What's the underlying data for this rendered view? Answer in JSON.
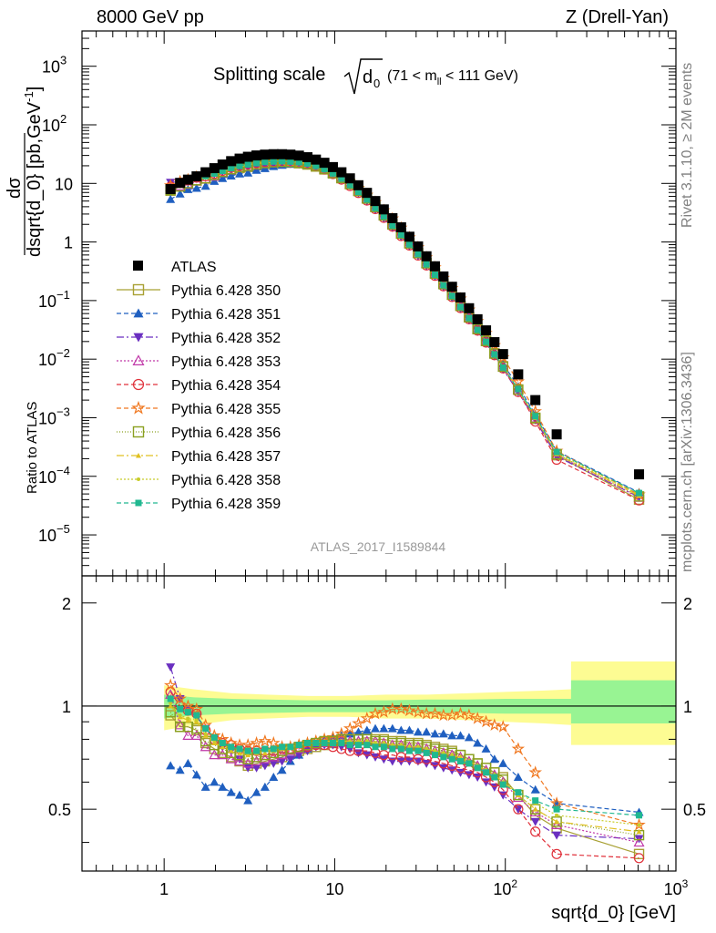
{
  "header": {
    "left": "8000 GeV pp",
    "right": "Z (Drell-Yan)"
  },
  "side_labels": {
    "rivet": "Rivet 3.1.10, ≥ 2M events",
    "mcplots": "mcplots.cern.ch [arXiv:1306.3436]"
  },
  "chart_data": {
    "type": "scatter",
    "title_main": "Splitting scale",
    "title_sqrt": "d",
    "title_sqrt_sub": "0",
    "title_range": "(71 < m",
    "title_range_sub": "ll",
    "title_range_end": " < 111 GeV)",
    "watermark": "ATLAS_2017_I1589844",
    "xlabel": "sqrt{d_0} [GeV]",
    "ylabel_top_num": "dσ",
    "ylabel_top_den": "dsqrt{d_0} [pb,GeV",
    "ylabel_top_den_sup": "-1",
    "ylabel_top_den_end": "]",
    "ylabel_ratio": "Ratio to ATLAS",
    "x_scale": "log",
    "y_scale": "log",
    "xlim": [
      0.33,
      1000
    ],
    "ylim": [
      2e-06,
      4000
    ],
    "ratio_ylim": [
      0.33,
      2.4
    ],
    "x_ticks": [
      "1",
      "10",
      "10²",
      "10³"
    ],
    "y_ticks": [
      "10⁻⁵",
      "10⁻⁴",
      "10⁻³",
      "10⁻²",
      "10⁻¹",
      "1",
      "10",
      "10²",
      "10³"
    ],
    "ratio_ticks": [
      "0.5",
      "1",
      "2"
    ],
    "x": [
      1.09,
      1.24,
      1.38,
      1.55,
      1.75,
      1.97,
      2.2,
      2.47,
      2.77,
      3.1,
      3.48,
      3.9,
      4.38,
      4.91,
      5.5,
      6.17,
      6.92,
      7.76,
      8.7,
      9.76,
      10.95,
      12.28,
      13.77,
      15.45,
      17.3,
      19.4,
      21.8,
      24.5,
      27.4,
      30.8,
      34.5,
      38.7,
      43.4,
      48.7,
      54.6,
      61.3,
      68.7,
      77.1,
      86.4,
      97,
      108.8,
      122,
      137.1,
      153.7,
      172.4,
      193.4,
      216.9,
      243.3,
      608
    ],
    "data_x": [
      1.09,
      1.24,
      1.38,
      1.55,
      1.75,
      1.97,
      2.2,
      2.47,
      2.77,
      3.1,
      3.48,
      3.9,
      4.38,
      4.91,
      5.5,
      6.17,
      6.92,
      7.76,
      8.7,
      9.76,
      10.95,
      12.28,
      13.77,
      15.45,
      17.3,
      19.4,
      21.8,
      24.5,
      27.4,
      30.8,
      34.5,
      38.7,
      43.4,
      48.7,
      54.6,
      61.3,
      68.7,
      77.1,
      86.4,
      97,
      108.8,
      122,
      137.1,
      153.7,
      172.4,
      193.4,
      216.9,
      243.3,
      608
    ],
    "atlas": {
      "name": "ATLAS",
      "x": [
        1.09,
        1.24,
        1.38,
        1.55,
        1.75,
        1.97,
        2.2,
        2.47,
        2.77,
        3.1,
        3.48,
        3.9,
        4.38,
        4.91,
        5.5,
        6.17,
        6.92,
        7.76,
        8.7,
        9.76,
        10.95,
        12.28,
        13.77,
        15.45,
        17.3,
        19.4,
        21.8,
        24.5,
        27.4,
        30.8,
        34.5,
        38.7,
        43.4,
        48.7,
        54.6,
        61.3,
        68.7,
        77.1,
        86.4,
        97,
        108.8,
        122,
        137.1,
        153.7,
        172.4,
        193.4,
        216.9,
        243.3,
        608
      ],
      "values": [
        8.0,
        10.2,
        11.6,
        13.2,
        15.5,
        18.2,
        21.0,
        24.0,
        26.5,
        28.5,
        30.0,
        31.0,
        31.5,
        31.5,
        31.0,
        29.8,
        28.0,
        25.5,
        22.5,
        19.0,
        15.5,
        12.2,
        9.3,
        6.9,
        5.0,
        3.6,
        2.55,
        1.78,
        1.23,
        0.84,
        0.57,
        0.385,
        0.258,
        0.172,
        0.113,
        0.074,
        0.048,
        0.031,
        0.0195,
        0.0122,
        0.0075,
        0.0046,
        0.0028,
        0.0017,
        0.00104,
        0.00063,
        0.00038,
        0.00023,
        0.00011
      ]
    },
    "atlas_points_x": [
      1.09,
      1.24,
      1.38,
      1.55,
      1.75,
      1.97,
      2.2,
      2.47,
      2.77,
      3.1,
      3.48,
      3.9,
      4.38,
      4.91,
      5.5,
      6.17,
      6.92,
      7.76,
      8.7,
      9.76,
      10.95,
      12.28,
      13.77,
      15.45,
      17.3,
      19.4,
      21.8,
      24.5,
      27.4,
      30.8,
      34.5,
      38.7,
      43.4,
      48.7,
      54.6,
      61.3,
      68.7,
      77.1,
      86.4,
      97,
      119,
      150,
      200,
      608
    ],
    "atlas_points_y": [
      8.0,
      10.2,
      11.6,
      13.2,
      15.5,
      18.2,
      21.0,
      24.0,
      26.5,
      28.5,
      30.0,
      31.0,
      31.5,
      31.5,
      31.0,
      29.8,
      28.0,
      25.5,
      22.5,
      19.0,
      15.5,
      12.2,
      9.3,
      6.9,
      5.0,
      3.6,
      2.55,
      1.78,
      1.23,
      0.84,
      0.57,
      0.385,
      0.258,
      0.172,
      0.113,
      0.074,
      0.048,
      0.031,
      0.0195,
      0.0122,
      0.0055,
      0.002,
      0.00052,
      0.000108
    ],
    "band_x": [
      1.0,
      1.5,
      2.5,
      4,
      7,
      12,
      20,
      35,
      60,
      100,
      170,
      243,
      243,
      1000
    ],
    "band_yellow_lo": [
      0.85,
      0.88,
      0.91,
      0.92,
      0.93,
      0.93,
      0.92,
      0.92,
      0.91,
      0.9,
      0.89,
      0.88,
      0.77,
      0.77
    ],
    "band_yellow_hi": [
      1.15,
      1.12,
      1.09,
      1.08,
      1.07,
      1.07,
      1.08,
      1.08,
      1.09,
      1.1,
      1.11,
      1.12,
      1.35,
      1.35
    ],
    "band_green_lo": [
      0.92,
      0.94,
      0.95,
      0.955,
      0.96,
      0.96,
      0.96,
      0.955,
      0.955,
      0.95,
      0.95,
      0.95,
      0.89,
      0.89
    ],
    "band_green_hi": [
      1.08,
      1.06,
      1.05,
      1.045,
      1.04,
      1.04,
      1.04,
      1.045,
      1.045,
      1.05,
      1.05,
      1.05,
      1.19,
      1.19
    ],
    "ratio_x": [
      1.09,
      1.24,
      1.38,
      1.55,
      1.75,
      1.97,
      2.2,
      2.47,
      2.77,
      3.1,
      3.48,
      3.9,
      4.38,
      4.91,
      5.5,
      6.17,
      6.92,
      7.76,
      8.7,
      9.76,
      10.95,
      12.28,
      13.77,
      15.45,
      17.3,
      19.4,
      21.8,
      24.5,
      27.4,
      30.8,
      34.5,
      38.7,
      43.4,
      48.7,
      54.6,
      61.3,
      68.7,
      77.1,
      86.4,
      97,
      119,
      150,
      200,
      608
    ],
    "series": [
      {
        "name": "Pythia 6.428 350",
        "color": "#a8a033",
        "marker": "square-open",
        "dash": "solid",
        "ratio": [
          0.94,
          0.87,
          0.87,
          0.85,
          0.78,
          0.75,
          0.73,
          0.71,
          0.69,
          0.67,
          0.68,
          0.69,
          0.7,
          0.71,
          0.73,
          0.74,
          0.75,
          0.76,
          0.77,
          0.78,
          0.79,
          0.8,
          0.8,
          0.81,
          0.8,
          0.8,
          0.79,
          0.79,
          0.78,
          0.78,
          0.77,
          0.76,
          0.75,
          0.74,
          0.72,
          0.7,
          0.68,
          0.66,
          0.64,
          0.62,
          0.55,
          0.48,
          0.44,
          0.37
        ]
      },
      {
        "name": "Pythia 6.428 351",
        "color": "#1f5fc0",
        "marker": "triangle-up-filled",
        "dash": "5,3",
        "ratio": [
          0.67,
          0.65,
          0.68,
          0.63,
          0.58,
          0.6,
          0.58,
          0.56,
          0.55,
          0.53,
          0.56,
          0.58,
          0.62,
          0.65,
          0.69,
          0.72,
          0.75,
          0.77,
          0.8,
          0.81,
          0.82,
          0.83,
          0.84,
          0.85,
          0.86,
          0.86,
          0.86,
          0.85,
          0.85,
          0.84,
          0.84,
          0.83,
          0.83,
          0.82,
          0.82,
          0.81,
          0.78,
          0.75,
          0.7,
          0.68,
          0.62,
          0.57,
          0.52,
          0.49
        ]
      },
      {
        "name": "Pythia 6.428 352",
        "color": "#6a2fc0",
        "marker": "triangle-down-filled",
        "dash": "8,3,2,3",
        "ratio": [
          1.3,
          1.05,
          0.97,
          0.93,
          0.86,
          0.8,
          0.76,
          0.74,
          0.7,
          0.66,
          0.66,
          0.67,
          0.68,
          0.69,
          0.7,
          0.72,
          0.74,
          0.76,
          0.77,
          0.77,
          0.76,
          0.75,
          0.73,
          0.72,
          0.71,
          0.7,
          0.69,
          0.69,
          0.69,
          0.69,
          0.68,
          0.67,
          0.66,
          0.65,
          0.64,
          0.63,
          0.62,
          0.6,
          0.58,
          0.55,
          0.5,
          0.46,
          0.42,
          0.41
        ]
      },
      {
        "name": "Pythia 6.428 353",
        "color": "#c038a8",
        "marker": "triangle-up-open",
        "dash": "2,2",
        "ratio": [
          1.08,
          0.88,
          0.82,
          0.82,
          0.76,
          0.72,
          0.72,
          0.7,
          0.69,
          0.68,
          0.69,
          0.7,
          0.71,
          0.72,
          0.74,
          0.75,
          0.76,
          0.77,
          0.78,
          0.78,
          0.79,
          0.79,
          0.79,
          0.79,
          0.79,
          0.78,
          0.77,
          0.77,
          0.76,
          0.76,
          0.75,
          0.74,
          0.73,
          0.72,
          0.71,
          0.69,
          0.67,
          0.65,
          0.63,
          0.6,
          0.54,
          0.49,
          0.45,
          0.4
        ]
      },
      {
        "name": "Pythia 6.428 354",
        "color": "#e0303a",
        "marker": "circle-open",
        "dash": "5,3",
        "ratio": [
          1.1,
          1.0,
          0.97,
          0.95,
          0.85,
          0.8,
          0.78,
          0.77,
          0.75,
          0.74,
          0.74,
          0.74,
          0.74,
          0.75,
          0.75,
          0.76,
          0.76,
          0.77,
          0.77,
          0.76,
          0.75,
          0.74,
          0.74,
          0.74,
          0.73,
          0.72,
          0.72,
          0.71,
          0.71,
          0.7,
          0.7,
          0.69,
          0.68,
          0.67,
          0.66,
          0.65,
          0.64,
          0.62,
          0.6,
          0.57,
          0.5,
          0.43,
          0.37,
          0.36
        ]
      },
      {
        "name": "Pythia 6.428 355",
        "color": "#f07820",
        "marker": "star-open",
        "dash": "5,3",
        "ratio": [
          1.15,
          1.05,
          1.0,
          0.98,
          0.88,
          0.82,
          0.8,
          0.78,
          0.77,
          0.77,
          0.78,
          0.79,
          0.78,
          0.76,
          0.76,
          0.77,
          0.78,
          0.79,
          0.8,
          0.81,
          0.83,
          0.86,
          0.89,
          0.92,
          0.95,
          0.96,
          0.98,
          0.98,
          0.97,
          0.96,
          0.95,
          0.95,
          0.94,
          0.94,
          0.95,
          0.94,
          0.92,
          0.9,
          0.88,
          0.87,
          0.75,
          0.64,
          0.52,
          0.45
        ]
      },
      {
        "name": "Pythia 6.428 356",
        "color": "#8aa020",
        "marker": "square-open",
        "dash": "1,2",
        "ratio": [
          0.96,
          0.87,
          0.87,
          0.86,
          0.79,
          0.77,
          0.75,
          0.73,
          0.72,
          0.7,
          0.71,
          0.72,
          0.73,
          0.74,
          0.75,
          0.76,
          0.77,
          0.78,
          0.79,
          0.79,
          0.8,
          0.8,
          0.8,
          0.8,
          0.79,
          0.79,
          0.78,
          0.78,
          0.77,
          0.77,
          0.76,
          0.75,
          0.74,
          0.73,
          0.72,
          0.7,
          0.68,
          0.66,
          0.64,
          0.61,
          0.55,
          0.5,
          0.46,
          0.42
        ]
      },
      {
        "name": "Pythia 6.428 357",
        "color": "#e0c020",
        "marker": "triangle-small",
        "dash": "8,3,2,3",
        "ratio": [
          1.0,
          0.93,
          0.91,
          0.9,
          0.82,
          0.78,
          0.76,
          0.74,
          0.73,
          0.72,
          0.73,
          0.73,
          0.74,
          0.75,
          0.76,
          0.77,
          0.78,
          0.78,
          0.79,
          0.79,
          0.79,
          0.79,
          0.79,
          0.79,
          0.78,
          0.78,
          0.77,
          0.77,
          0.76,
          0.76,
          0.75,
          0.74,
          0.73,
          0.72,
          0.71,
          0.69,
          0.67,
          0.65,
          0.63,
          0.6,
          0.55,
          0.5,
          0.46,
          0.43
        ]
      },
      {
        "name": "Pythia 6.428 358",
        "color": "#c8cc2a",
        "marker": "dot-small",
        "dash": "2,2",
        "ratio": [
          1.02,
          0.94,
          0.92,
          0.91,
          0.83,
          0.79,
          0.77,
          0.75,
          0.74,
          0.73,
          0.73,
          0.74,
          0.75,
          0.76,
          0.76,
          0.77,
          0.78,
          0.78,
          0.79,
          0.79,
          0.79,
          0.79,
          0.79,
          0.79,
          0.78,
          0.78,
          0.77,
          0.77,
          0.76,
          0.76,
          0.75,
          0.74,
          0.73,
          0.72,
          0.7,
          0.69,
          0.67,
          0.65,
          0.63,
          0.6,
          0.56,
          0.52,
          0.48,
          0.45
        ]
      },
      {
        "name": "Pythia 6.428 359",
        "color": "#20b890",
        "marker": "square-filled-small",
        "dash": "5,3",
        "ratio": [
          1.05,
          0.98,
          0.96,
          0.94,
          0.86,
          0.81,
          0.78,
          0.76,
          0.75,
          0.74,
          0.74,
          0.75,
          0.75,
          0.76,
          0.76,
          0.77,
          0.78,
          0.78,
          0.78,
          0.78,
          0.78,
          0.77,
          0.77,
          0.77,
          0.76,
          0.76,
          0.75,
          0.75,
          0.74,
          0.74,
          0.73,
          0.72,
          0.71,
          0.7,
          0.69,
          0.68,
          0.66,
          0.64,
          0.62,
          0.59,
          0.56,
          0.53,
          0.5,
          0.48
        ]
      }
    ]
  }
}
